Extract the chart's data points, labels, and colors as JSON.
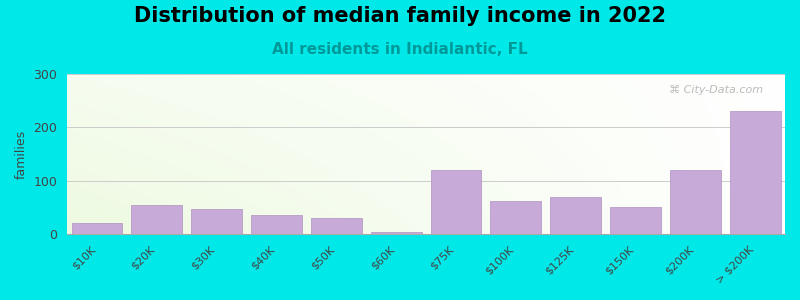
{
  "title": "Distribution of median family income in 2022",
  "subtitle": "All residents in Indialantic, FL",
  "ylabel": "families",
  "categories": [
    "$10K",
    "$20K",
    "$30K",
    "$40K",
    "$50K",
    "$60K",
    "$75K",
    "$100K",
    "$125K",
    "$150K",
    "$200K",
    "> $200K"
  ],
  "values": [
    20,
    55,
    47,
    35,
    30,
    5,
    120,
    62,
    70,
    50,
    120,
    230
  ],
  "bar_color": "#c8aad8",
  "bar_edge_color": "#b090c0",
  "background_color": "#00e8e8",
  "ylim": [
    0,
    300
  ],
  "yticks": [
    0,
    100,
    200,
    300
  ],
  "grid_color": "#cccccc",
  "title_fontsize": 15,
  "subtitle_fontsize": 11,
  "subtitle_color": "#009999",
  "watermark_text": "⌘ City-Data.com",
  "watermark_color": "#b0b0b0"
}
